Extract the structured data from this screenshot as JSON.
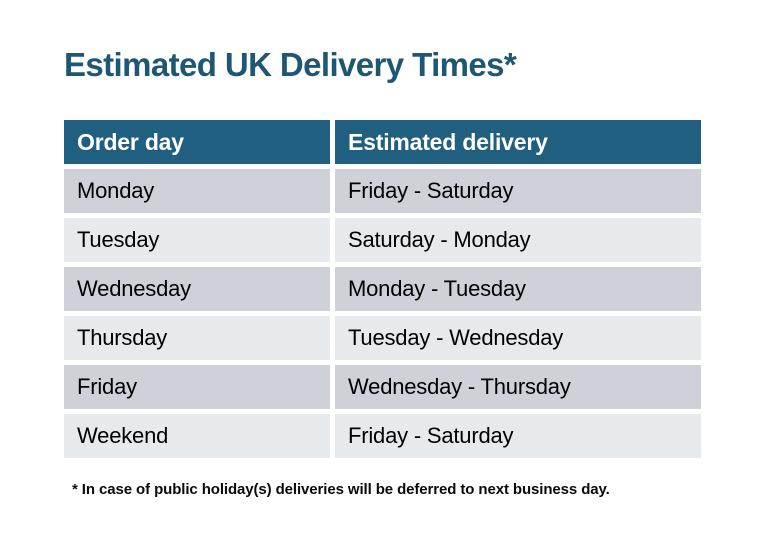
{
  "title": {
    "text": "Estimated UK Delivery Times*"
  },
  "table": {
    "header": {
      "order_day": "Order day",
      "estimated_delivery": "Estimated delivery"
    },
    "rows": [
      {
        "order_day": "Monday",
        "estimated_delivery": "Friday - Saturday"
      },
      {
        "order_day": "Tuesday",
        "estimated_delivery": "Saturday - Monday"
      },
      {
        "order_day": "Wednesday",
        "estimated_delivery": "Monday - Tuesday"
      },
      {
        "order_day": "Thursday",
        "estimated_delivery": "Tuesday - Wednesday"
      },
      {
        "order_day": "Friday",
        "estimated_delivery": "Wednesday - Thursday"
      },
      {
        "order_day": "Weekend",
        "estimated_delivery": "Friday - Saturday"
      }
    ]
  },
  "footnote": {
    "text": "* In case of public holiday(s) deliveries will be deferred to next business day."
  },
  "colors": {
    "title_text": "#1e5673",
    "header_bg": "#215f80",
    "header_text": "#ffffff",
    "row_dark": "#ced2d8",
    "row_light": "#e7eaed",
    "body_text": "#000000",
    "page_bg": "#ffffff"
  },
  "chart_data": {
    "type": "table",
    "title": "Estimated UK Delivery Times*",
    "columns": [
      "Order day",
      "Estimated delivery"
    ],
    "rows": [
      [
        "Monday",
        "Friday - Saturday"
      ],
      [
        "Tuesday",
        "Saturday - Monday"
      ],
      [
        "Wednesday",
        "Monday - Tuesday"
      ],
      [
        "Thursday",
        "Tuesday - Wednesday"
      ],
      [
        "Friday",
        "Wednesday - Thursday"
      ],
      [
        "Weekend",
        "Friday - Saturday"
      ]
    ],
    "annotations": [
      "* In case of public holiday(s) deliveries will be deferred to next business day."
    ],
    "layout_hints": {
      "header_style": "solid teal band, white bold text",
      "row_style": "alternating gray bands starting dark, white gaps between cells",
      "legend": "none",
      "grid": "cell gaps act as white separators"
    }
  }
}
